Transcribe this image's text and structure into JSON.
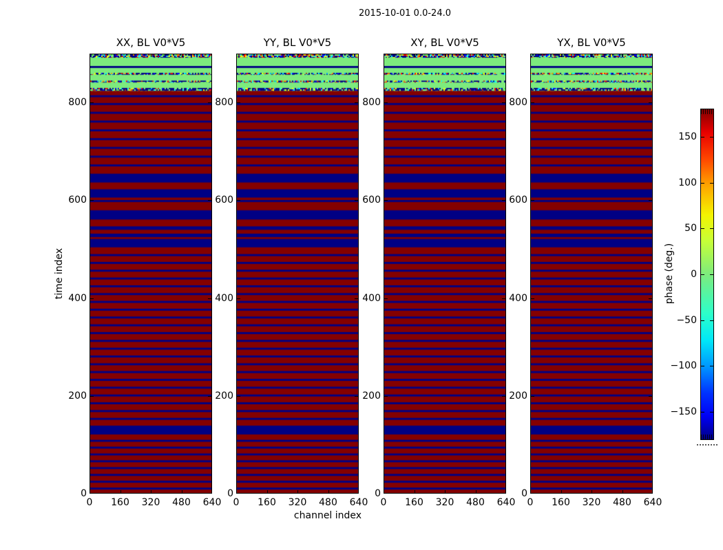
{
  "chart_data": {
    "type": "heatmap",
    "title": "2015-10-01 0.0-24.0",
    "xlabel": "channel index",
    "ylabel": "time index",
    "panels": [
      {
        "label": "XX, BL V0*V5"
      },
      {
        "label": "YY, BL V0*V5"
      },
      {
        "label": "XY, BL V0*V5"
      },
      {
        "label": "YX, BL V0*V5"
      }
    ],
    "x_range": [
      0,
      640
    ],
    "y_range": [
      0,
      900
    ],
    "x_ticks": [
      0,
      160,
      320,
      480,
      640
    ],
    "y_ticks": [
      0,
      200,
      400,
      600,
      800
    ],
    "grid": false,
    "colorbar": {
      "label": "phase (deg.)",
      "tick_values": [
        150,
        100,
        50,
        0,
        -50,
        -100,
        -150
      ],
      "tick_labels": [
        "150",
        "100",
        "50",
        "0",
        "−50",
        "−100",
        "−150"
      ],
      "range": [
        -180,
        180
      ],
      "colormap": "jet"
    },
    "value_colors": {
      "phase_plus180_red": "#840000",
      "phase_minus180_blue": "#000084",
      "phase_zero_green": "#7deb7d"
    },
    "bands": {
      "note": "time-index ranges (0=bottom, 900=top) read from the raster; same pattern in all four panels",
      "green_region": [
        825,
        900
      ],
      "green_blue_line": [
        872,
        876
      ],
      "speckle_rows": [
        [
          893,
          900
        ],
        [
          858,
          862
        ],
        [
          842,
          846
        ],
        [
          825,
          831
        ]
      ],
      "thick_blue_bands": [
        [
          637,
          655
        ],
        [
          606,
          623
        ],
        [
          561,
          580
        ],
        [
          504,
          521
        ],
        [
          120,
          138
        ]
      ],
      "medium_blue_bands": [
        [
          597,
          601
        ],
        [
          540,
          547
        ],
        [
          525,
          532
        ]
      ],
      "thin_blue_line_centers": [
        9,
        23,
        37,
        51,
        65,
        79,
        93,
        107,
        152,
        168,
        184,
        200,
        216,
        232,
        248,
        264,
        280,
        296,
        312,
        328,
        344,
        360,
        376,
        392,
        408,
        424,
        440,
        456,
        472,
        488,
        672,
        690,
        708,
        726,
        744,
        762,
        780,
        798,
        814
      ],
      "thin_blue_line_width": 4
    },
    "speckle_palette": [
      "#000084",
      "#0000ff",
      "#00a8ff",
      "#00ffff",
      "#ff0000",
      "#b22222",
      "#ffff00",
      "#ff8c00",
      "#54d854"
    ]
  }
}
